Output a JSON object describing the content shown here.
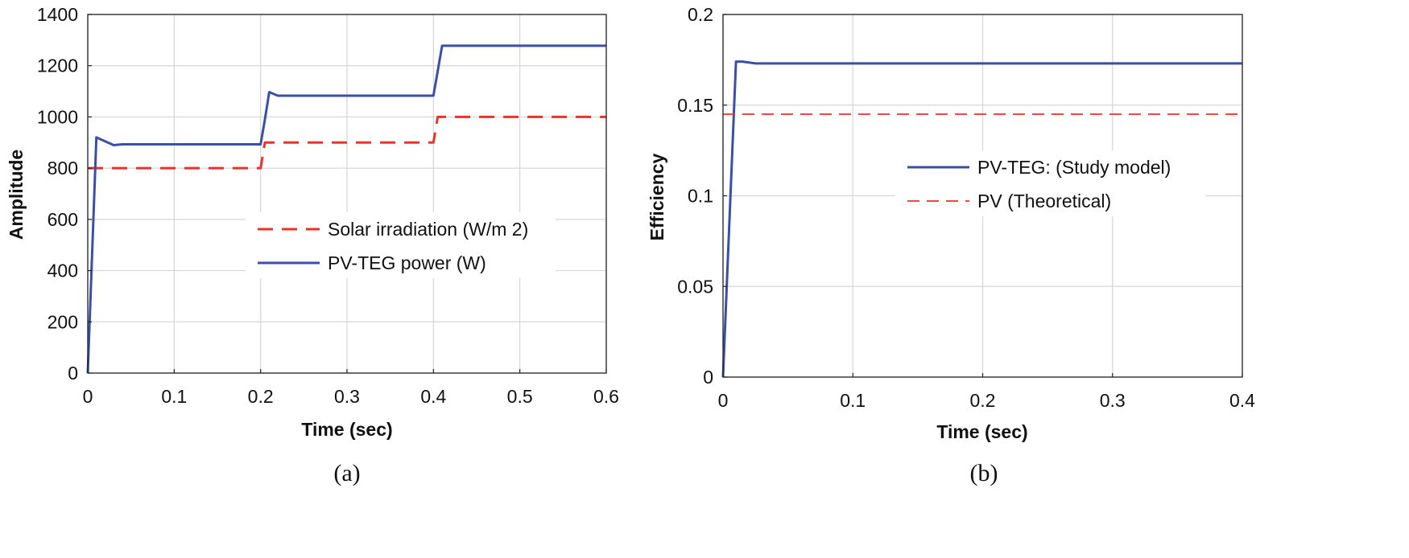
{
  "chart_data": [
    {
      "type": "line",
      "caption": "(a)",
      "xlabel": "Time (sec)",
      "ylabel": "Amplitude",
      "xlim": [
        0,
        0.6
      ],
      "ylim": [
        0,
        1400
      ],
      "xticks": [
        0,
        0.1,
        0.2,
        0.3,
        0.4,
        0.5,
        0.6
      ],
      "yticks": [
        0,
        200,
        400,
        600,
        800,
        1000,
        1200,
        1400
      ],
      "xtick_labels": [
        "0",
        "0.1",
        "0.2",
        "0.3",
        "0.4",
        "0.5",
        "0.6"
      ],
      "ytick_labels": [
        "0",
        "200",
        "400",
        "600",
        "800",
        "1000",
        "1200",
        "1400"
      ],
      "grid": true,
      "legend_position": "center-right",
      "series": [
        {
          "name": "Solar irradiation (W/m 2)",
          "color": "#e8322a",
          "style": "dashed",
          "x": [
            0,
            0.2,
            0.205,
            0.4,
            0.405,
            0.6
          ],
          "y": [
            800,
            800,
            900,
            900,
            1000,
            1000
          ]
        },
        {
          "name": "PV-TEG power (W)",
          "color": "#3a4fa8",
          "style": "solid",
          "x": [
            0,
            0.01,
            0.02,
            0.03,
            0.04,
            0.2,
            0.205,
            0.21,
            0.22,
            0.4,
            0.405,
            0.41,
            0.6
          ],
          "y": [
            0,
            920,
            905,
            890,
            893,
            893,
            990,
            1097,
            1083,
            1083,
            1180,
            1278,
            1278
          ]
        }
      ]
    },
    {
      "type": "line",
      "caption": "(b)",
      "xlabel": "Time (sec)",
      "ylabel": "Efficiency",
      "xlim": [
        0,
        0.4
      ],
      "ylim": [
        0,
        0.2
      ],
      "xticks": [
        0,
        0.1,
        0.2,
        0.3,
        0.4
      ],
      "yticks": [
        0,
        0.05,
        0.1,
        0.15,
        0.2
      ],
      "xtick_labels": [
        "0",
        "0.1",
        "0.2",
        "0.3",
        "0.4"
      ],
      "ytick_labels": [
        "0",
        "0.05",
        "0.1",
        "0.15",
        "0.2"
      ],
      "grid": true,
      "legend_position": "center",
      "series": [
        {
          "name": "PV-TEG: (Study model)",
          "color": "#3a4fa8",
          "style": "solid",
          "x": [
            0,
            0.01,
            0.015,
            0.025,
            0.4
          ],
          "y": [
            0,
            0.174,
            0.174,
            0.173,
            0.173
          ]
        },
        {
          "name": "PV (Theoretical)",
          "color": "#e8322a",
          "style": "dashed",
          "x": [
            0,
            0.4
          ],
          "y": [
            0.145,
            0.145
          ]
        }
      ]
    }
  ]
}
